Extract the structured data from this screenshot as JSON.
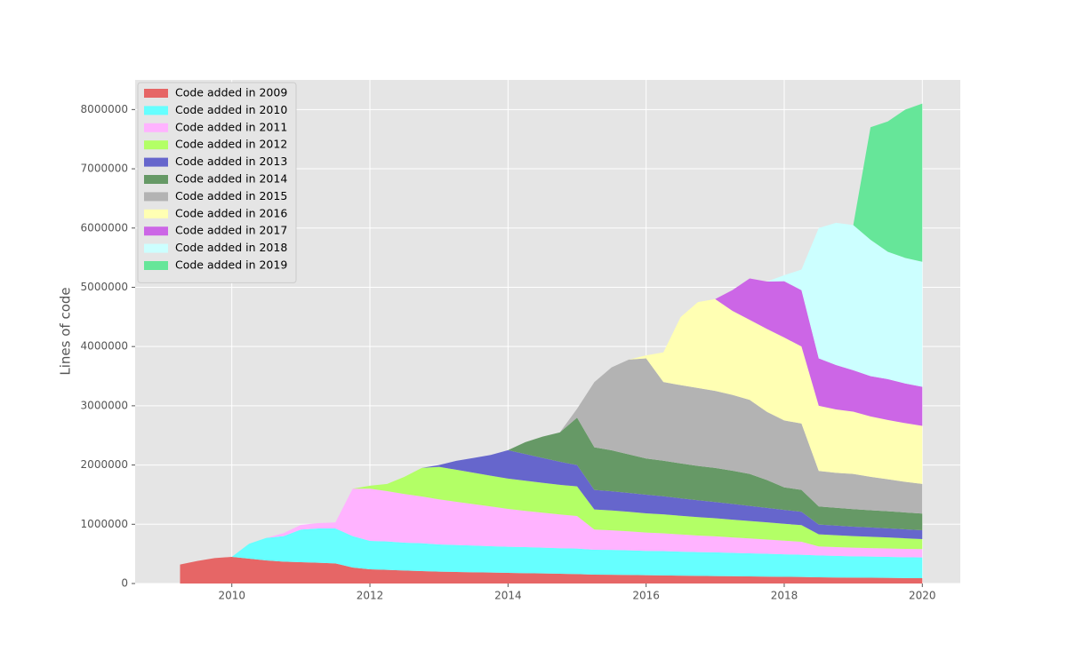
{
  "chart_data": {
    "type": "stacked_area",
    "ylabel": "Lines of code",
    "grid": true,
    "legend": "upper left",
    "xlim": [
      2008.6,
      2020.55
    ],
    "xticks": [
      2010,
      2012,
      2014,
      2016,
      2018,
      2020
    ],
    "ylim": [
      0,
      8500000
    ],
    "yticks": [
      0,
      1000000,
      2000000,
      3000000,
      4000000,
      5000000,
      6000000,
      7000000,
      8000000
    ],
    "x": [
      2009.25,
      2009.5,
      2009.75,
      2010,
      2010.25,
      2010.5,
      2010.75,
      2011,
      2011.25,
      2011.5,
      2011.75,
      2012,
      2012.25,
      2012.5,
      2012.75,
      2013,
      2013.25,
      2013.5,
      2013.75,
      2014,
      2014.25,
      2014.5,
      2014.75,
      2015,
      2015.25,
      2015.5,
      2015.75,
      2016,
      2016.25,
      2016.5,
      2016.75,
      2017,
      2017.25,
      2017.5,
      2017.75,
      2018,
      2018.25,
      2018.5,
      2018.75,
      2019,
      2019.25,
      2019.5,
      2019.75,
      2020
    ],
    "series": [
      {
        "name": "Code added in 2009",
        "color": "#e66666",
        "values": [
          320000,
          380000,
          430000,
          450000,
          420000,
          390000,
          370000,
          360000,
          350000,
          340000,
          270000,
          240000,
          230000,
          220000,
          210000,
          200000,
          195000,
          190000,
          185000,
          180000,
          175000,
          170000,
          165000,
          160000,
          150000,
          148000,
          145000,
          140000,
          137000,
          133000,
          130000,
          126000,
          123000,
          120000,
          117000,
          113000,
          110000,
          105000,
          102000,
          100000,
          97000,
          95000,
          92000,
          90000
        ]
      },
      {
        "name": "Code added in 2010",
        "color": "#66ffff",
        "values": [
          0,
          0,
          0,
          0,
          250000,
          380000,
          430000,
          550000,
          580000,
          590000,
          530000,
          480000,
          480000,
          470000,
          470000,
          460000,
          455000,
          450000,
          445000,
          440000,
          440000,
          435000,
          430000,
          430000,
          420000,
          420000,
          415000,
          410000,
          410000,
          405000,
          400000,
          400000,
          395000,
          390000,
          385000,
          380000,
          375000,
          370000,
          365000,
          360000,
          358000,
          355000,
          352000,
          350000
        ]
      },
      {
        "name": "Code added in 2011",
        "color": "#ffb3ff",
        "values": [
          0,
          0,
          0,
          0,
          0,
          0,
          50000,
          80000,
          90000,
          100000,
          800000,
          880000,
          850000,
          820000,
          790000,
          760000,
          730000,
          700000,
          670000,
          640000,
          610000,
          590000,
          570000,
          550000,
          340000,
          330000,
          320000,
          310000,
          300000,
          290000,
          280000,
          270000,
          260000,
          250000,
          240000,
          230000,
          220000,
          150000,
          148000,
          145000,
          143000,
          142000,
          141000,
          140000
        ]
      },
      {
        "name": "Code added in 2012",
        "color": "#b3ff66",
        "values": [
          0,
          0,
          0,
          0,
          0,
          0,
          0,
          0,
          0,
          0,
          0,
          50000,
          120000,
          290000,
          480000,
          550000,
          540000,
          530000,
          520000,
          510000,
          510000,
          505000,
          500000,
          500000,
          340000,
          335000,
          330000,
          325000,
          320000,
          315000,
          310000,
          305000,
          300000,
          295000,
          290000,
          285000,
          280000,
          205000,
          200000,
          195000,
          190000,
          185000,
          178000,
          170000
        ]
      },
      {
        "name": "Code added in 2013",
        "color": "#6666cc",
        "values": [
          0,
          0,
          0,
          0,
          0,
          0,
          0,
          0,
          0,
          0,
          0,
          0,
          0,
          0,
          0,
          30000,
          150000,
          250000,
          350000,
          480000,
          450000,
          420000,
          390000,
          360000,
          330000,
          325000,
          320000,
          315000,
          305000,
          295000,
          285000,
          275000,
          265000,
          255000,
          245000,
          235000,
          225000,
          165000,
          163000,
          160000,
          158000,
          155000,
          152000,
          150000
        ]
      },
      {
        "name": "Code added in 2014",
        "color": "#669966",
        "values": [
          0,
          0,
          0,
          0,
          0,
          0,
          0,
          0,
          0,
          0,
          0,
          0,
          0,
          0,
          0,
          0,
          0,
          0,
          0,
          0,
          200000,
          360000,
          495000,
          800000,
          720000,
          690000,
          650000,
          610000,
          600000,
          590000,
          580000,
          575000,
          560000,
          540000,
          470000,
          380000,
          370000,
          305000,
          300000,
          295000,
          290000,
          288000,
          285000,
          280000
        ]
      },
      {
        "name": "Code added in 2015",
        "color": "#b3b3b3",
        "values": [
          0,
          0,
          0,
          0,
          0,
          0,
          0,
          0,
          0,
          0,
          0,
          0,
          0,
          0,
          0,
          0,
          0,
          0,
          0,
          0,
          0,
          0,
          0,
          150000,
          1100000,
          1400000,
          1600000,
          1690000,
          1330000,
          1320000,
          1315000,
          1300000,
          1280000,
          1250000,
          1150000,
          1130000,
          1120000,
          600000,
          590000,
          595000,
          565000,
          540000,
          517000,
          500000
        ]
      },
      {
        "name": "Code added in 2016",
        "color": "#ffffb3",
        "values": [
          0,
          0,
          0,
          0,
          0,
          0,
          0,
          0,
          0,
          0,
          0,
          0,
          0,
          0,
          0,
          0,
          0,
          0,
          0,
          0,
          0,
          0,
          0,
          0,
          0,
          0,
          0,
          50000,
          500000,
          1150000,
          1450000,
          1550000,
          1420000,
          1350000,
          1400000,
          1400000,
          1300000,
          1100000,
          1070000,
          1050000,
          1020000,
          1000000,
          990000,
          980000
        ]
      },
      {
        "name": "Code added in 2017",
        "color": "#cc66e6",
        "values": [
          0,
          0,
          0,
          0,
          0,
          0,
          0,
          0,
          0,
          0,
          0,
          0,
          0,
          0,
          0,
          0,
          0,
          0,
          0,
          0,
          0,
          0,
          0,
          0,
          0,
          0,
          0,
          0,
          0,
          0,
          0,
          0,
          350000,
          700000,
          800000,
          950000,
          950000,
          800000,
          750000,
          700000,
          680000,
          690000,
          670000,
          660000
        ]
      },
      {
        "name": "Code added in 2018",
        "color": "#ccffff",
        "values": [
          0,
          0,
          0,
          0,
          0,
          0,
          0,
          0,
          0,
          0,
          0,
          0,
          0,
          0,
          0,
          0,
          0,
          0,
          0,
          0,
          0,
          0,
          0,
          0,
          0,
          0,
          0,
          0,
          0,
          0,
          0,
          0,
          0,
          0,
          0,
          100000,
          350000,
          2200000,
          2400000,
          2450000,
          2300000,
          2150000,
          2120000,
          2110000
        ]
      },
      {
        "name": "Code added in 2019",
        "color": "#66e699",
        "values": [
          0,
          0,
          0,
          0,
          0,
          0,
          0,
          0,
          0,
          0,
          0,
          0,
          0,
          0,
          0,
          0,
          0,
          0,
          0,
          0,
          0,
          0,
          0,
          0,
          0,
          0,
          0,
          0,
          0,
          0,
          0,
          0,
          0,
          0,
          0,
          0,
          0,
          0,
          0,
          0,
          1900000,
          2200000,
          2500000,
          2670000
        ]
      }
    ]
  }
}
